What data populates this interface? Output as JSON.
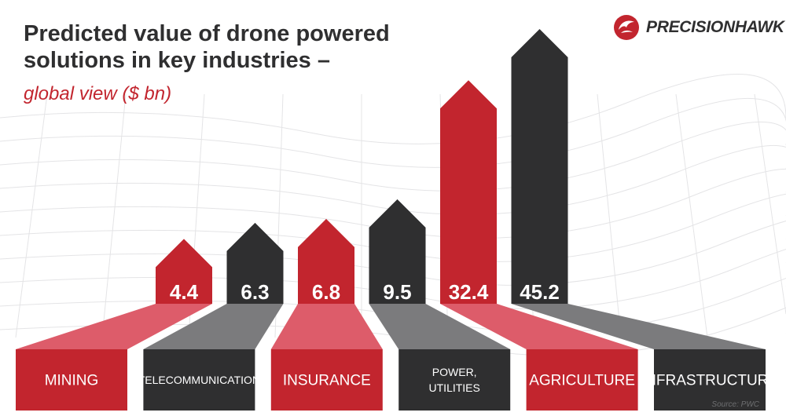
{
  "header": {
    "title": "Predicted value of drone powered solutions in key industries –",
    "subtitle": "global view ($ bn)"
  },
  "logo": {
    "text": "PRECISIONHAWK"
  },
  "source": "Source: PWC",
  "colors": {
    "red": "#c2252e",
    "dark": "#2f2f30",
    "red_light": "#dd5c6a",
    "dark_light": "#7b7b7d"
  },
  "chart_data": {
    "type": "bar",
    "title": "Predicted value of drone powered solutions in key industries – global view ($ bn)",
    "categories": [
      "MINING",
      "TELECOMMUNICATION",
      "INSURANCE",
      "POWER, UTILITIES",
      "AGRICULTURE",
      "INFRASTRUCTURE"
    ],
    "values": [
      4.4,
      6.3,
      6.8,
      9.5,
      32.4,
      45.2
    ],
    "value_labels": [
      "4.4",
      "6.3",
      "6.8",
      "9.5",
      "32.4",
      "45.2"
    ],
    "ylabel": "$ bn",
    "xlabel": "",
    "ylim": [
      0,
      45.2
    ]
  }
}
